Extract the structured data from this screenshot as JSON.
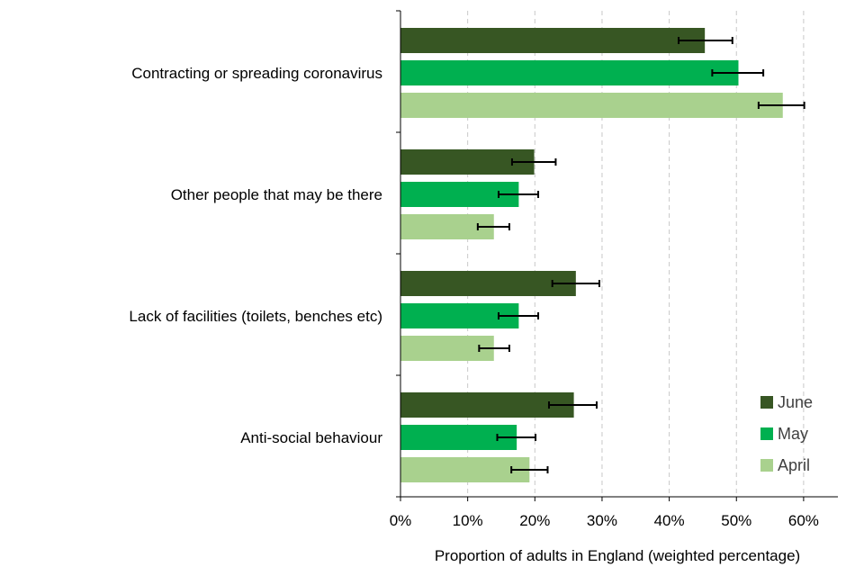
{
  "chart_data": {
    "type": "bar",
    "orientation": "horizontal",
    "title": "",
    "xlabel": "Proportion of adults in England (weighted percentage)",
    "ylabel": "",
    "xlim": [
      0,
      65
    ],
    "xticks": [
      0,
      10,
      20,
      30,
      40,
      50,
      60
    ],
    "xtick_labels": [
      "0%",
      "10%",
      "20%",
      "30%",
      "40%",
      "50%",
      "60%"
    ],
    "grid": "vertical dashed",
    "legend_position": "bottom-right",
    "categories": [
      "Contracting or spreading coronavirus",
      "Other people that may be there",
      "Lack of facilities (toilets, benches etc)",
      "Anti-social behaviour"
    ],
    "series": [
      {
        "name": "June",
        "color": "#375623",
        "values": [
          45.3,
          19.9,
          26.1,
          25.8
        ],
        "err_low": [
          41.4,
          16.6,
          22.6,
          22.1
        ],
        "err_high": [
          49.4,
          23.1,
          29.6,
          29.2
        ]
      },
      {
        "name": "May",
        "color": "#00b050",
        "values": [
          50.3,
          17.6,
          17.6,
          17.3
        ],
        "err_low": [
          46.4,
          14.6,
          14.6,
          14.4
        ],
        "err_high": [
          54.0,
          20.5,
          20.5,
          20.1
        ]
      },
      {
        "name": "April",
        "color": "#a9d18e",
        "values": [
          56.9,
          13.9,
          13.9,
          19.2
        ],
        "err_low": [
          53.3,
          11.5,
          11.7,
          16.5
        ],
        "err_high": [
          60.1,
          16.2,
          16.2,
          21.9
        ]
      }
    ]
  }
}
